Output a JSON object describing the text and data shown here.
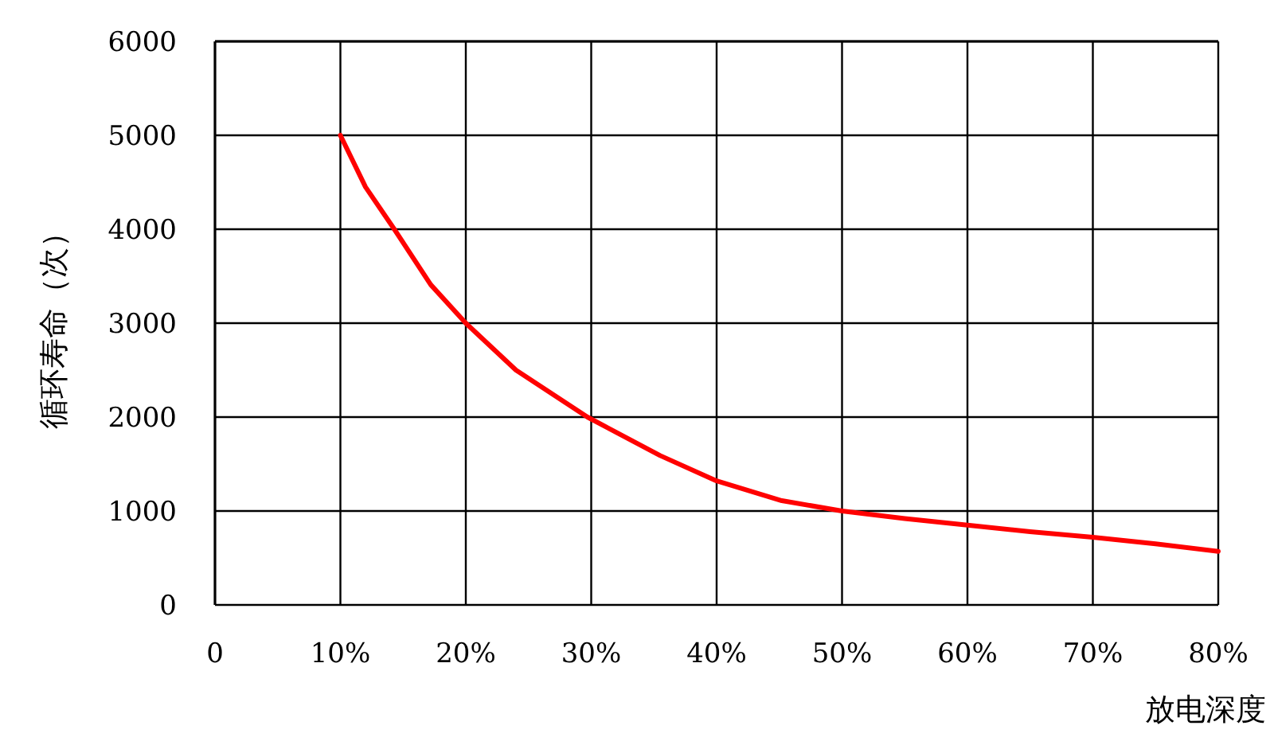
{
  "chart_data": {
    "type": "line",
    "xlabel": "放电深度",
    "ylabel": "循环寿命（次）",
    "series": [
      {
        "color": "#ff0000",
        "x": [
          10,
          12,
          14.3,
          17.2,
          20,
          24,
          29.7,
          35.5,
          40,
          45.2,
          50,
          55,
          60,
          65,
          70,
          75,
          80
        ],
        "values": [
          5000,
          4450,
          4000,
          3410,
          3000,
          2500,
          2000,
          1590,
          1320,
          1110,
          1000,
          920,
          850,
          780,
          720,
          650,
          570
        ]
      }
    ],
    "xlim": [
      0,
      80
    ],
    "ylim": [
      0,
      6000
    ],
    "xticks": [
      0,
      {
        "value": 10,
        "label": "10%"
      },
      {
        "value": 20,
        "label": "20%"
      },
      {
        "value": 30,
        "label": "30%"
      },
      {
        "value": 40,
        "label": "40%"
      },
      {
        "value": 50,
        "label": "50%"
      },
      {
        "value": 60,
        "label": "60%"
      },
      {
        "value": 70,
        "label": "70%"
      },
      {
        "value": 80,
        "label": "80%"
      }
    ],
    "yticks": [
      0,
      1000,
      2000,
      3000,
      4000,
      5000,
      6000
    ],
    "grid": true,
    "marker": "none",
    "line_style": "solid"
  }
}
